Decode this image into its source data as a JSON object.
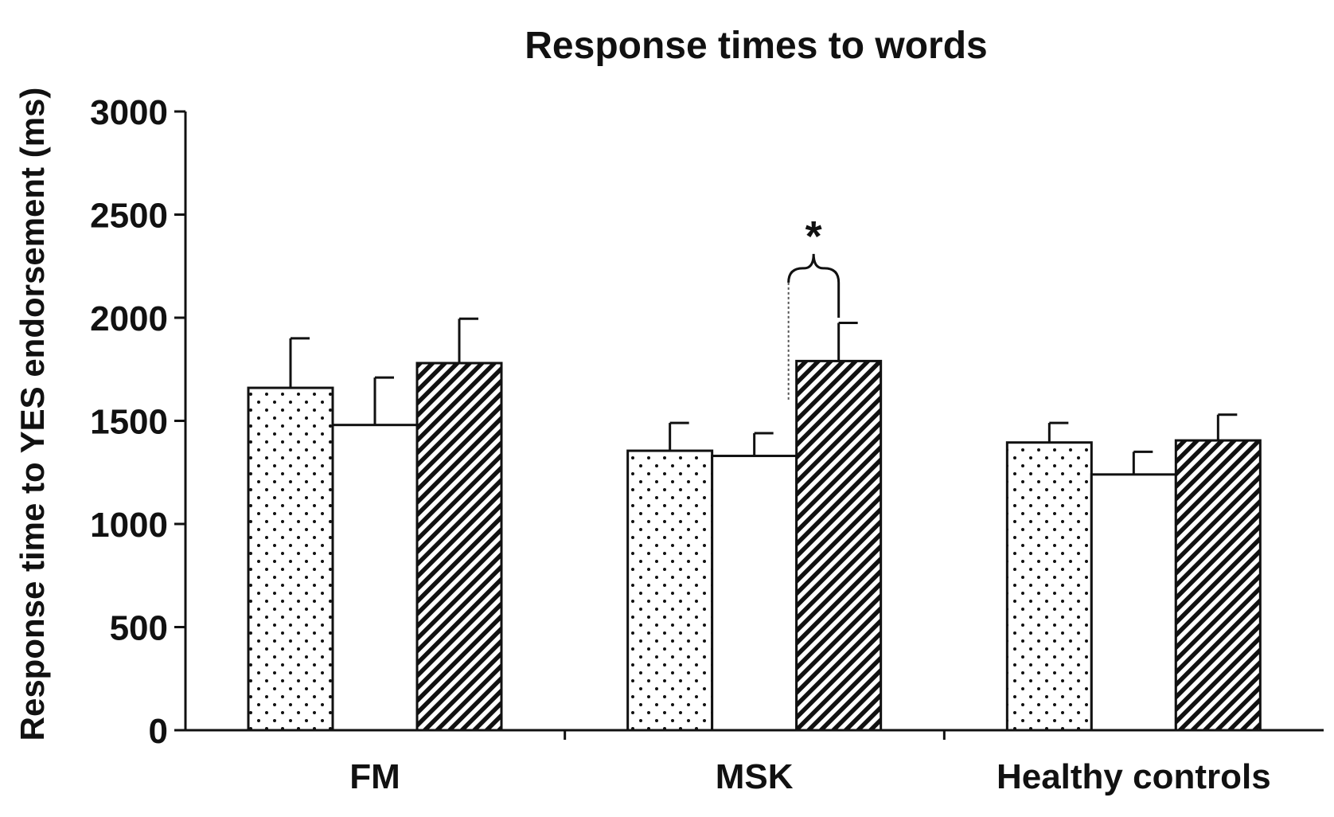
{
  "chart_data": {
    "type": "bar",
    "title": "Response times to words",
    "xlabel": "",
    "ylabel": "Response time to YES endorsement (ms)",
    "ylim": [
      0,
      3000
    ],
    "yticks": [
      "0",
      "500",
      "1000",
      "1500",
      "2000",
      "2500",
      "3000"
    ],
    "categories": [
      "FM",
      "MSK",
      "Healthy controls"
    ],
    "series": [
      {
        "pattern": "dots",
        "values": [
          1660,
          1355,
          1395
        ],
        "errors": [
          240,
          135,
          95
        ]
      },
      {
        "pattern": "plain",
        "values": [
          1480,
          1330,
          1240
        ],
        "errors": [
          230,
          110,
          110
        ]
      },
      {
        "pattern": "hatch",
        "values": [
          1780,
          1790,
          1405
        ],
        "errors": [
          215,
          185,
          125
        ]
      }
    ],
    "annotations": [
      {
        "text": "*",
        "category": "MSK",
        "from_series": 1,
        "to_series": 2
      }
    ],
    "grid": false,
    "legend": "none"
  }
}
